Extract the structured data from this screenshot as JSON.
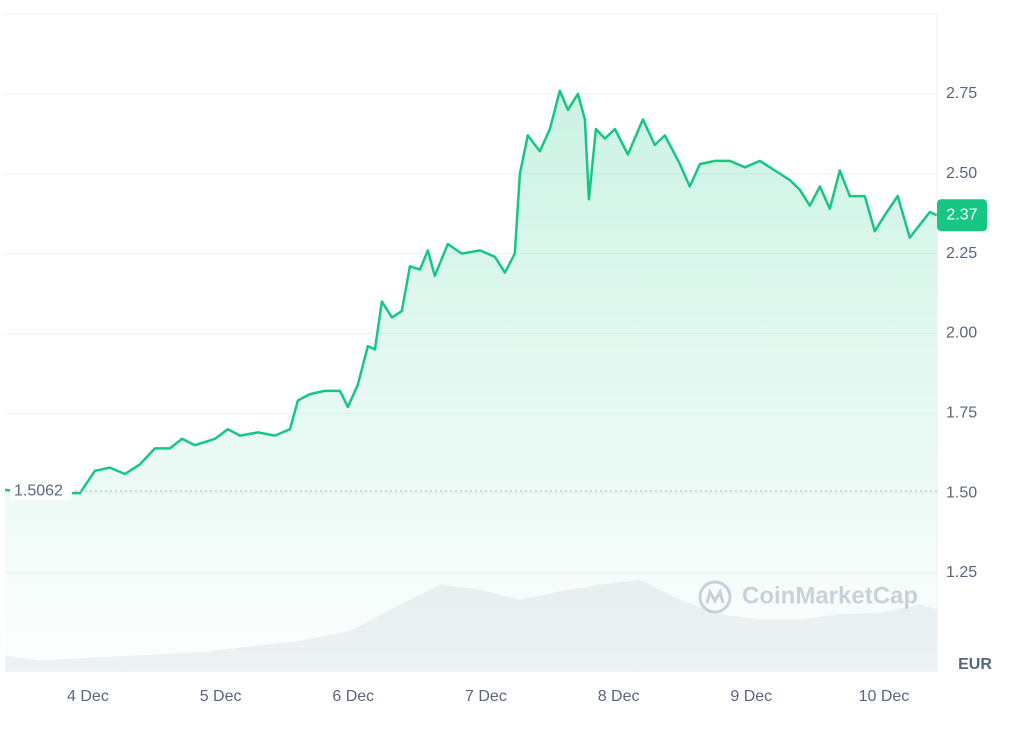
{
  "chart_data": {
    "type": "line",
    "color": "#16c784",
    "currency": "EUR",
    "watermark": "CoinMarketCap",
    "reference_line": 1.5062,
    "last_price": 2.37,
    "grid": true,
    "xlim": [
      3.375,
      10.4
    ],
    "xticks": [
      {
        "value": 4,
        "label": "4 Dec"
      },
      {
        "value": 5,
        "label": "5 Dec"
      },
      {
        "value": 6,
        "label": "6 Dec"
      },
      {
        "value": 7,
        "label": "7 Dec"
      },
      {
        "value": 8,
        "label": "8 Dec"
      },
      {
        "value": 9,
        "label": "9 Dec"
      },
      {
        "value": 10,
        "label": "10 Dec"
      }
    ],
    "ylim": [
      0.94,
      3.0
    ],
    "yticks": [
      1.25,
      {
        "value": 1.5,
        "label": "1.50"
      },
      1.75,
      {
        "value": 2,
        "label": "2.00"
      },
      2.25,
      {
        "value": 2.5,
        "label": "2.50"
      },
      2.75
    ],
    "x": [
      3.375,
      3.639,
      3.94,
      4.053,
      4.166,
      4.279,
      4.392,
      4.505,
      4.618,
      4.709,
      4.807,
      4.958,
      5.055,
      5.146,
      5.282,
      5.41,
      5.523,
      5.583,
      5.673,
      5.786,
      5.9,
      5.96,
      6.035,
      6.11,
      6.163,
      6.216,
      6.291,
      6.366,
      6.427,
      6.502,
      6.563,
      6.615,
      6.713,
      6.819,
      6.955,
      7.068,
      7.143,
      7.218,
      7.256,
      7.316,
      7.406,
      7.482,
      7.557,
      7.618,
      7.693,
      7.746,
      7.776,
      7.829,
      7.897,
      7.972,
      8.07,
      8.183,
      8.273,
      8.349,
      8.462,
      8.537,
      8.613,
      8.726,
      8.839,
      8.952,
      9.065,
      9.178,
      9.291,
      9.366,
      9.441,
      9.517,
      9.592,
      9.667,
      9.743,
      9.856,
      9.931,
      10.006,
      10.104,
      10.195,
      10.27,
      10.346,
      10.398
    ],
    "values": [
      1.51,
      1.5,
      1.5,
      1.57,
      1.58,
      1.56,
      1.59,
      1.64,
      1.64,
      1.67,
      1.65,
      1.67,
      1.7,
      1.68,
      1.69,
      1.68,
      1.7,
      1.79,
      1.81,
      1.82,
      1.82,
      1.77,
      1.84,
      1.96,
      1.95,
      2.1,
      2.05,
      2.07,
      2.21,
      2.2,
      2.26,
      2.18,
      2.28,
      2.25,
      2.26,
      2.24,
      2.19,
      2.25,
      2.5,
      2.62,
      2.57,
      2.64,
      2.76,
      2.7,
      2.75,
      2.67,
      2.42,
      2.64,
      2.61,
      2.64,
      2.56,
      2.67,
      2.59,
      2.62,
      2.53,
      2.46,
      2.53,
      2.54,
      2.54,
      2.52,
      2.54,
      2.51,
      2.48,
      2.45,
      2.4,
      2.46,
      2.39,
      2.51,
      2.43,
      2.43,
      2.32,
      2.37,
      2.43,
      2.3,
      2.34,
      2.38,
      2.37
    ],
    "volume": {
      "color": "#eff2f5",
      "ylim": [
        0,
        400
      ],
      "x": [
        3.375,
        3.639,
        4.091,
        4.845,
        5.598,
        5.975,
        6.352,
        6.653,
        6.955,
        7.256,
        7.557,
        7.859,
        8.16,
        8.462,
        8.763,
        9.065,
        9.366,
        9.667,
        9.969,
        10.27,
        10.398
      ],
      "values": [
        10,
        7,
        9,
        12,
        19,
        25,
        41,
        53,
        50,
        44,
        49,
        53,
        56,
        44,
        35,
        32,
        32,
        35,
        36,
        41,
        38
      ]
    }
  }
}
